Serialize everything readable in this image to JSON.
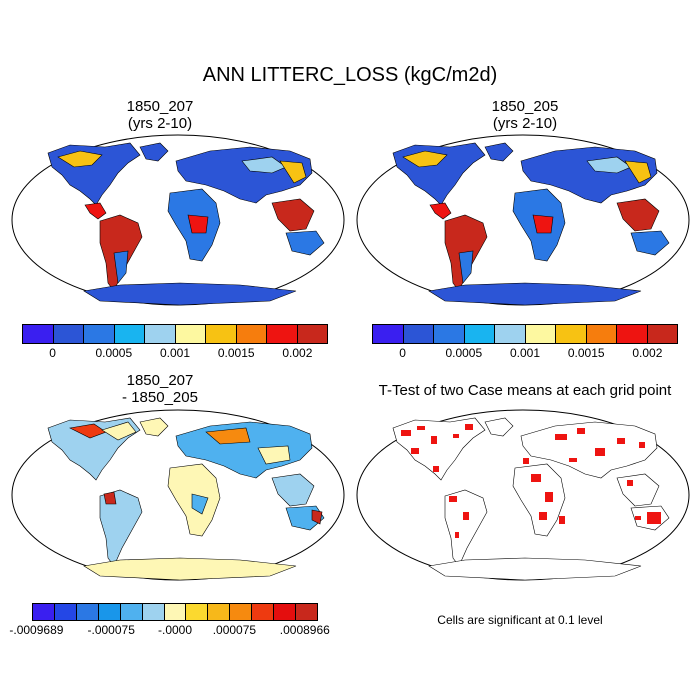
{
  "title": "ANN LITTERC_LOSS (kgC/m2d)",
  "panels": [
    {
      "id": "p1",
      "title_line1": "1850_207",
      "title_line2": "(yrs 2-10)"
    },
    {
      "id": "p2",
      "title_line1": "1850_205",
      "title_line2": "(yrs 2-10)"
    },
    {
      "id": "p3",
      "title_line1": "1850_207",
      "title_line2": "- 1850_205"
    },
    {
      "id": "p4",
      "title_line1": "T-Test of two Case means at each grid point",
      "title_line2": ""
    }
  ],
  "colorbar_abs": {
    "colors": [
      "#3a1ff0",
      "#2c55d6",
      "#2b78e4",
      "#19b4f0",
      "#9ed2ef",
      "#fdf8a0",
      "#f7c213",
      "#f67d0d",
      "#ee1411",
      "#c8281c"
    ],
    "labels": [
      "0",
      "0.0005",
      "0.001",
      "0.0015",
      "0.002"
    ]
  },
  "colorbar_diff": {
    "colors": [
      "#3a1ff0",
      "#2447e6",
      "#2b78e4",
      "#1996ea",
      "#4fb1ef",
      "#9ed2ef",
      "#fef7b5",
      "#fbd92f",
      "#f7b81a",
      "#f68a0f",
      "#ee3a10",
      "#e40e0e",
      "#c8281c"
    ],
    "labels": [
      "-.0009689",
      "-.000075",
      "-.0000",
      ".000075",
      ".0008966"
    ]
  },
  "ttest_note": "Cells are significant at 0.1 level"
}
